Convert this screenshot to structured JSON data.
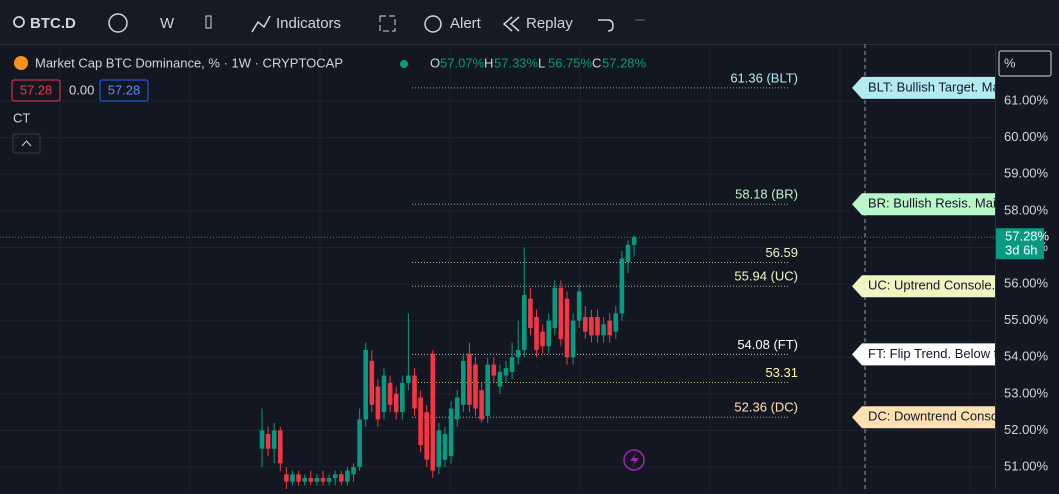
{
  "toolbar": {
    "symbol": "BTC.D",
    "interval": "W",
    "indicators": "Indicators",
    "alert": "Alert",
    "replay": "Replay"
  },
  "legend": {
    "title": "Market Cap BTC Dominance, % · 1W · CRYPTOCAP",
    "ohlc": [
      {
        "label": "O",
        "value": "57.07%"
      },
      {
        "label": "H",
        "value": "57.33%"
      },
      {
        "label": "L",
        "value": "56.75%"
      },
      {
        "label": "C",
        "value": "57.28%"
      }
    ],
    "values": [
      "57.28",
      "0.00",
      "57.28"
    ],
    "ct": "CT"
  },
  "axis_unit": "%",
  "chart_data": {
    "type": "candlestick",
    "up_color": "#089981",
    "down_color": "#f23645",
    "ylim": [
      50.4,
      62.56
    ],
    "yticks": [
      {
        "value": 51,
        "label": "51.00%"
      },
      {
        "value": 52,
        "label": "52.00%"
      },
      {
        "value": 53,
        "label": "53.00%"
      },
      {
        "value": 54,
        "label": "54.00%"
      },
      {
        "value": 55,
        "label": "55.00%"
      },
      {
        "value": 56,
        "label": "56.00%"
      },
      {
        "value": 57,
        "label": "57.00%"
      },
      {
        "value": 58,
        "label": "58.00%"
      },
      {
        "value": 59,
        "label": "59.00%"
      },
      {
        "value": 60,
        "label": "60.00%"
      },
      {
        "value": 61,
        "label": "61.00%"
      }
    ],
    "grid": true,
    "last_price": {
      "value": 57.28,
      "label": "57.28%",
      "countdown": "3d 6h"
    },
    "levels": [
      {
        "value": 61.36,
        "label": "61.36 (BLT)",
        "color": "#b2ebf2",
        "tag": "BLT: Bullish Target. Ma",
        "tag_color": "#b2ebf2"
      },
      {
        "value": 58.18,
        "label": "58.18 (BR)",
        "color": "#b9f6ca",
        "tag": "BR: Bullish Resis. Main",
        "tag_color": "#b9f6ca"
      },
      {
        "value": 56.59,
        "label": "56.59",
        "color": "#f0f4c3"
      },
      {
        "value": 55.94,
        "label": "55.94 (UC)",
        "color": "#f0f4c3",
        "tag": "UC: Uptrend Console.",
        "tag_color": "#f0f4c3"
      },
      {
        "value": 54.08,
        "label": "54.08 (FT)",
        "color": "#ffffff",
        "tag": "FT: Flip Trend. Below t",
        "tag_color": "#ffffff"
      },
      {
        "value": 53.31,
        "label": "53.31",
        "color": "#fff59d"
      },
      {
        "value": 52.36,
        "label": "52.36 (DC)",
        "color": "#ffe0b2",
        "tag": "DC: Downtrend Console",
        "tag_color": "#ffe0b2"
      }
    ],
    "candles": [
      [
        51.5,
        52.6,
        51.0,
        52.0
      ],
      [
        51.9,
        52.1,
        51.3,
        51.5
      ],
      [
        51.5,
        52.2,
        51.1,
        52.0
      ],
      [
        52.0,
        52.1,
        50.9,
        51.1
      ],
      [
        50.8,
        51.0,
        50.4,
        50.6
      ],
      [
        50.6,
        50.9,
        50.5,
        50.8
      ],
      [
        50.8,
        50.9,
        50.5,
        50.6
      ],
      [
        50.6,
        50.8,
        50.5,
        50.7
      ],
      [
        50.7,
        50.9,
        50.5,
        50.6
      ],
      [
        50.6,
        50.8,
        50.5,
        50.7
      ],
      [
        50.7,
        50.9,
        50.5,
        50.6
      ],
      [
        50.6,
        50.8,
        50.5,
        50.7
      ],
      [
        50.7,
        50.9,
        50.5,
        50.8
      ],
      [
        50.8,
        50.9,
        50.5,
        50.6
      ],
      [
        50.6,
        51.0,
        50.5,
        50.9
      ],
      [
        50.8,
        51.1,
        50.6,
        51.0
      ],
      [
        51.0,
        52.6,
        50.9,
        52.3
      ],
      [
        52.3,
        54.4,
        52.1,
        54.2
      ],
      [
        53.9,
        54.2,
        52.5,
        52.7
      ],
      [
        53.2,
        53.4,
        52.1,
        52.3
      ],
      [
        52.5,
        53.7,
        52.3,
        53.5
      ],
      [
        53.3,
        53.5,
        52.5,
        52.7
      ],
      [
        53.0,
        53.2,
        52.3,
        52.5
      ],
      [
        52.5,
        53.5,
        52.3,
        53.3
      ],
      [
        53.3,
        55.2,
        53.1,
        53.5
      ],
      [
        53.5,
        53.7,
        52.4,
        52.6
      ],
      [
        52.9,
        53.1,
        51.4,
        51.6
      ],
      [
        52.5,
        52.7,
        51.0,
        51.2
      ],
      [
        54.1,
        54.2,
        50.7,
        50.9
      ],
      [
        51.0,
        52.2,
        50.8,
        52.0
      ],
      [
        51.2,
        52.1,
        51.0,
        51.9
      ],
      [
        51.3,
        52.8,
        51.1,
        52.6
      ],
      [
        52.3,
        53.1,
        52.1,
        52.9
      ],
      [
        52.7,
        54.1,
        52.5,
        53.9
      ],
      [
        54.1,
        54.4,
        52.5,
        52.7
      ],
      [
        53.8,
        54.0,
        52.4,
        52.6
      ],
      [
        53.1,
        53.3,
        52.2,
        52.3
      ],
      [
        52.4,
        54.0,
        52.2,
        53.8
      ],
      [
        53.8,
        54.0,
        53.3,
        53.5
      ],
      [
        53.2,
        53.8,
        53.0,
        53.6
      ],
      [
        53.5,
        53.9,
        53.3,
        53.7
      ],
      [
        53.6,
        54.4,
        53.4,
        54.0
      ],
      [
        54.0,
        55.0,
        53.8,
        54.2
      ],
      [
        54.2,
        57.0,
        54.0,
        55.7
      ],
      [
        55.6,
        55.9,
        54.6,
        54.8
      ],
      [
        55.1,
        55.3,
        54.0,
        54.2
      ],
      [
        54.7,
        54.9,
        54.1,
        54.3
      ],
      [
        54.3,
        55.2,
        54.1,
        55.0
      ],
      [
        54.8,
        56.1,
        54.6,
        55.9
      ],
      [
        55.9,
        56.1,
        54.3,
        54.5
      ],
      [
        55.6,
        55.8,
        53.8,
        54.0
      ],
      [
        54.0,
        55.2,
        53.8,
        55.0
      ],
      [
        55.0,
        56.0,
        54.8,
        55.8
      ],
      [
        55.1,
        55.4,
        54.5,
        54.7
      ],
      [
        55.1,
        55.3,
        54.4,
        54.6
      ],
      [
        55.1,
        55.3,
        54.4,
        54.6
      ],
      [
        54.6,
        55.1,
        54.4,
        54.9
      ],
      [
        55.0,
        55.2,
        54.4,
        54.6
      ],
      [
        54.7,
        55.4,
        54.5,
        55.2
      ],
      [
        55.2,
        56.9,
        55.0,
        56.7
      ],
      [
        56.6,
        57.2,
        56.3,
        57.07
      ],
      [
        57.07,
        57.33,
        56.75,
        57.28
      ]
    ]
  }
}
